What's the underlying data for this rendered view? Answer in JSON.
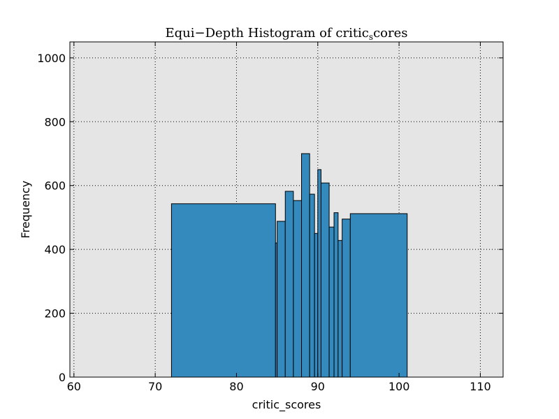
{
  "chart_data": {
    "type": "bar",
    "title_main": "Equi−Depth Histogram of critic",
    "title_sub": "s",
    "title_end": "cores",
    "xlabel": "critic_scores",
    "ylabel": "Frequency",
    "xlim": [
      59.5,
      112.8
    ],
    "ylim": [
      0,
      1050
    ],
    "xticks": [
      60,
      70,
      80,
      90,
      100,
      110
    ],
    "yticks": [
      0,
      200,
      400,
      600,
      800,
      1000
    ],
    "grid": true,
    "grid_style": "dotted",
    "plot_background": "#e5e5e5",
    "bar_color": "#348abd",
    "bar_edge_color": "#000000",
    "bins": [
      {
        "x0": 72.0,
        "x1": 84.8,
        "value": 543
      },
      {
        "x0": 84.8,
        "x1": 85.0,
        "value": 420
      },
      {
        "x0": 85.0,
        "x1": 86.0,
        "value": 488
      },
      {
        "x0": 86.0,
        "x1": 87.0,
        "value": 582
      },
      {
        "x0": 87.0,
        "x1": 88.0,
        "value": 553
      },
      {
        "x0": 88.0,
        "x1": 89.0,
        "value": 700
      },
      {
        "x0": 89.0,
        "x1": 89.6,
        "value": 573
      },
      {
        "x0": 89.6,
        "x1": 90.0,
        "value": 450
      },
      {
        "x0": 90.0,
        "x1": 90.4,
        "value": 650
      },
      {
        "x0": 90.4,
        "x1": 91.4,
        "value": 608
      },
      {
        "x0": 91.4,
        "x1": 92.0,
        "value": 470
      },
      {
        "x0": 92.0,
        "x1": 92.5,
        "value": 515
      },
      {
        "x0": 92.5,
        "x1": 93.0,
        "value": 428
      },
      {
        "x0": 93.0,
        "x1": 94.0,
        "value": 495
      },
      {
        "x0": 94.0,
        "x1": 101.0,
        "value": 512
      }
    ]
  }
}
